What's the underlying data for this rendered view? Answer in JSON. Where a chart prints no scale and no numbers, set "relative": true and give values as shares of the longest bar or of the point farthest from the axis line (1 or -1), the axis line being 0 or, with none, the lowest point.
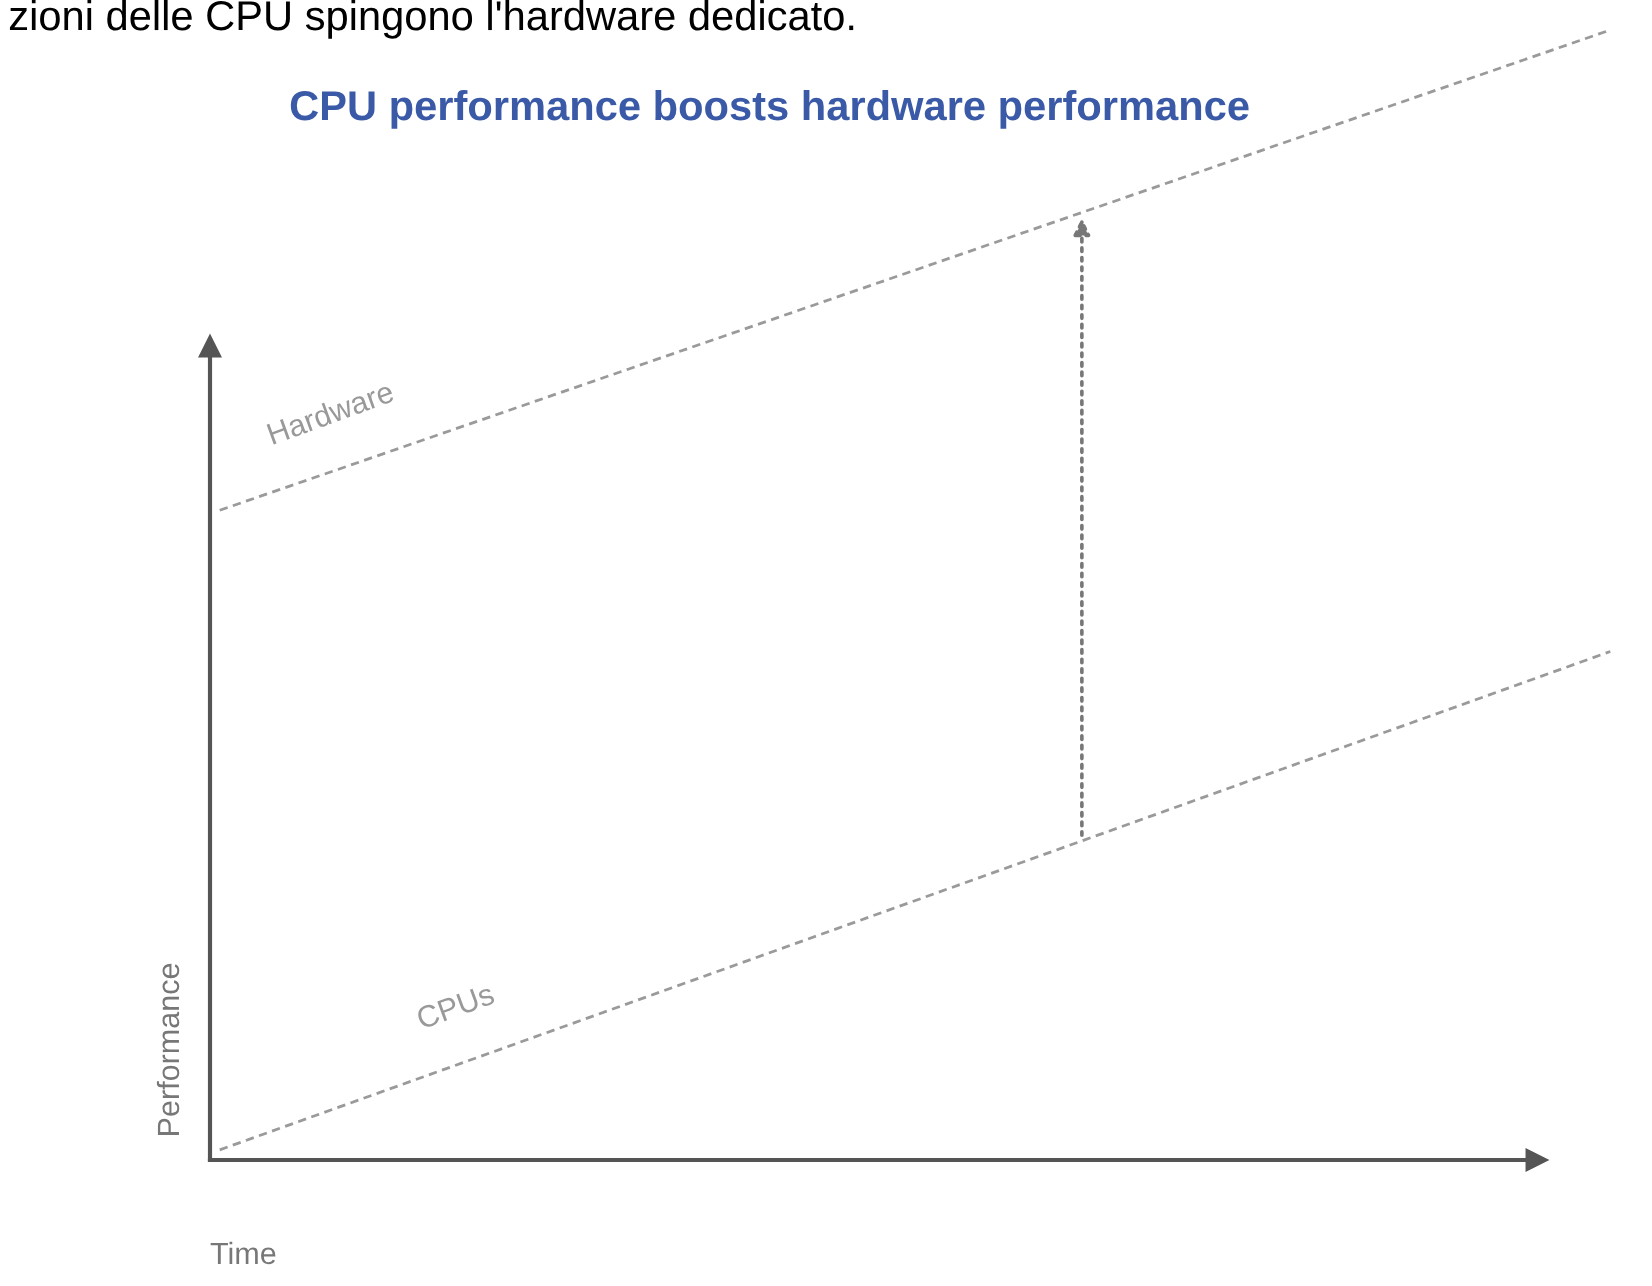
{
  "chart_data": {
    "type": "line",
    "relative": true,
    "title": "CPU performance boosts hardware performance",
    "xlabel": "Time",
    "ylabel": "Performance",
    "annotations": [
      "zioni delle CPU spingono l'hardware dedicato."
    ],
    "categories": [
      null,
      null
    ],
    "series": [
      {
        "name": "Hardware",
        "color": "#9a9a9a",
        "values": [
          0.575,
          1.0
        ]
      },
      {
        "name": "CPUs",
        "color": "#9a9a9a",
        "values": [
          0.009,
          0.45
        ]
      }
    ],
    "line_style": "dashed",
    "marker": "none",
    "grid": false
  }
}
